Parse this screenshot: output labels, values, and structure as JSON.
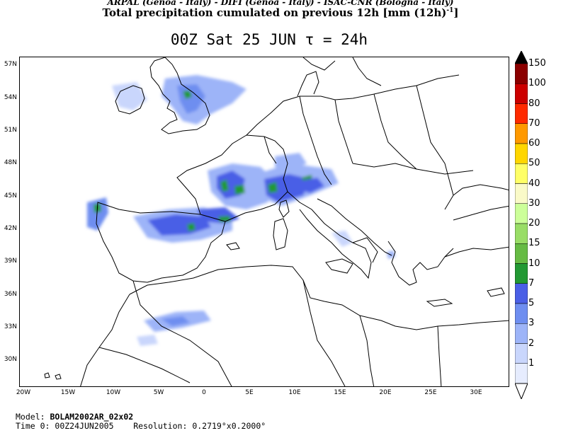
{
  "header": {
    "credits": "ARPAL (Genoa - Italy)  -  DIFI (Genoa - Italy)  -  ISAC-CNR (Bologna - Italy)",
    "title": "Total precipitation cumulated on previous 12h [mm (12h)",
    "title_exponent": "-1",
    "title_suffix": "]",
    "subtitle": "00Z Sat 25 JUN  τ = 24h"
  },
  "map": {
    "lat_labels": [
      "57N",
      "54N",
      "51N",
      "48N",
      "45N",
      "42N",
      "39N",
      "36N",
      "33N",
      "30N"
    ],
    "lon_labels": [
      "20W",
      "15W",
      "10W",
      "5W",
      "0",
      "5E",
      "10E",
      "15E",
      "20E",
      "25E",
      "30E"
    ],
    "coastline_color": "#000000",
    "precip_areas": [
      {
        "region": "northern-england",
        "max_level": 10
      },
      {
        "region": "central-france",
        "max_level": 10
      },
      {
        "region": "western-alps",
        "max_level": 10
      },
      {
        "region": "pyrenees",
        "max_level": 10
      },
      {
        "region": "northern-spain",
        "max_level": 10
      },
      {
        "region": "northwest-iberia",
        "max_level": 10
      },
      {
        "region": "eastern-alps",
        "max_level": 10
      },
      {
        "region": "atlas-morocco",
        "max_level": 5
      }
    ]
  },
  "colorbar": {
    "levels": [
      "150",
      "100",
      "80",
      "70",
      "60",
      "50",
      "40",
      "30",
      "20",
      "15",
      "10",
      "7",
      "5",
      "3",
      "2",
      "1"
    ],
    "colors": [
      "#000000",
      "#8b0000",
      "#cc0000",
      "#ff2a00",
      "#ff9900",
      "#ffd600",
      "#ffff66",
      "#fafac8",
      "#ccff99",
      "#99dd66",
      "#66bb44",
      "#229933",
      "#4a5fe6",
      "#6e8ef0",
      "#9db4f8",
      "#c9d6fc",
      "#e6ecfe",
      "#ffffff"
    ]
  },
  "footer": {
    "model_label": "Model:",
    "model_value": "BOLAM2002AR_02x02",
    "time_label": "Time 0:",
    "time_value": "00Z24JUN2005",
    "resolution_label": "Resolution:",
    "resolution_value": "0.2719°x0.2000°"
  }
}
